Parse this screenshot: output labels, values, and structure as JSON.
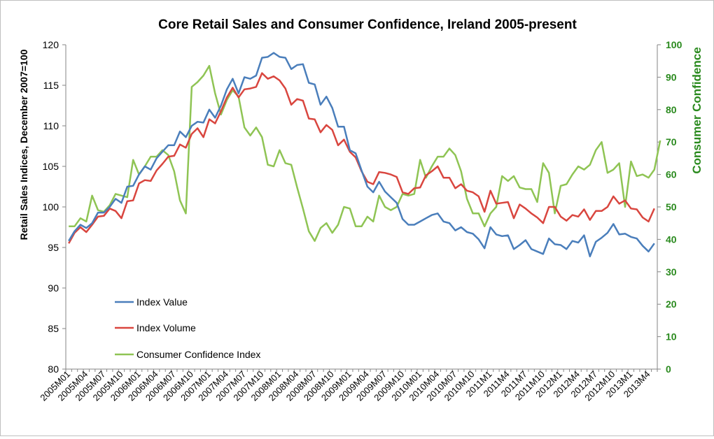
{
  "chart_data": {
    "type": "line",
    "title": "Core Retail Sales and Consumer Confidence, Ireland 2005-present",
    "ylabel_left": "Retail Sales  Indices, December 2007=100",
    "ylabel_right": "Consumer Confidence",
    "ylim_left": [
      80,
      120
    ],
    "ylim_right": [
      0,
      100
    ],
    "y_ticks_left": [
      80,
      85,
      90,
      95,
      100,
      105,
      110,
      115,
      120
    ],
    "y_ticks_right": [
      0,
      10,
      20,
      30,
      40,
      50,
      60,
      70,
      80,
      90,
      100
    ],
    "x_tick_labels": [
      "2005M01",
      "2005M04",
      "2005M07",
      "2005M10",
      "2006M01",
      "2006M04",
      "2006M07",
      "2006M10",
      "2007M01",
      "2007M04",
      "2007M07",
      "2007M10",
      "2008M01",
      "2008M04",
      "2008M07",
      "2008M10",
      "2009M01",
      "2009M04",
      "2009M07",
      "2009M10",
      "2010M01",
      "2010M04",
      "2010M07",
      "2010M10",
      "2011M1",
      "2011M4",
      "2011M7",
      "2011M10",
      "2012M1",
      "2012M4",
      "2012M7",
      "2012M10",
      "2013M1",
      "2013M4"
    ],
    "grid": false,
    "legend_position": "bottom-left",
    "colors": {
      "value": "#4a7ebb",
      "volume": "#d9463f",
      "confidence": "#8fc454",
      "right_axis": "#2a8a1e"
    },
    "series": [
      {
        "name": "Index Value",
        "axis": "left",
        "values": [
          95.8,
          97.0,
          97.8,
          97.4,
          98.0,
          99.3,
          99.3,
          100.0,
          101.0,
          100.5,
          102.5,
          102.6,
          104.0,
          105.0,
          104.6,
          106.0,
          106.8,
          107.6,
          107.6,
          109.3,
          108.6,
          110.0,
          110.5,
          110.4,
          112.0,
          111.0,
          112.5,
          114.5,
          115.8,
          114.0,
          116.0,
          115.8,
          116.2,
          118.4,
          118.5,
          119.0,
          118.5,
          118.4,
          117.0,
          117.5,
          117.6,
          115.3,
          115.1,
          112.6,
          113.6,
          112.2,
          109.9,
          109.9,
          107.0,
          106.6,
          104.5,
          102.5,
          101.8,
          103.1,
          101.9,
          101.2,
          100.5,
          98.5,
          97.8,
          97.8,
          98.2,
          98.6,
          99.0,
          99.2,
          98.2,
          98.0,
          97.1,
          97.5,
          96.9,
          96.7,
          96.0,
          94.9,
          97.5,
          96.6,
          96.4,
          96.5,
          94.8,
          95.3,
          95.9,
          94.8,
          94.5,
          94.2,
          96.1,
          95.4,
          95.3,
          94.8,
          95.8,
          95.6,
          96.5,
          93.9,
          95.7,
          96.2,
          96.8,
          97.9,
          96.6,
          96.7,
          96.3,
          96.1,
          95.2,
          94.5,
          95.5
        ]
      },
      {
        "name": "Index Volume",
        "axis": "left",
        "values": [
          95.5,
          96.8,
          97.5,
          96.9,
          97.8,
          98.8,
          98.9,
          99.8,
          99.5,
          98.6,
          100.7,
          100.8,
          102.9,
          103.3,
          103.2,
          104.5,
          105.3,
          106.2,
          106.3,
          107.7,
          107.3,
          109.0,
          109.7,
          108.6,
          110.8,
          110.3,
          111.8,
          113.5,
          114.7,
          113.5,
          114.5,
          114.6,
          114.8,
          116.5,
          115.8,
          116.1,
          115.6,
          114.6,
          112.6,
          113.3,
          113.1,
          110.9,
          110.8,
          109.2,
          110.1,
          109.5,
          107.6,
          108.3,
          106.8,
          106.1,
          104.4,
          103.1,
          102.8,
          104.3,
          104.2,
          104.0,
          103.7,
          101.8,
          101.6,
          102.3,
          102.4,
          103.9,
          104.4,
          105.0,
          103.6,
          103.6,
          102.3,
          102.8,
          102.0,
          101.8,
          101.3,
          99.4,
          102.0,
          100.4,
          100.5,
          100.6,
          98.6,
          100.3,
          99.8,
          99.2,
          98.7,
          98.0,
          100.0,
          100.0,
          98.8,
          98.3,
          99.0,
          98.8,
          99.7,
          98.4,
          99.5,
          99.5,
          100.0,
          101.3,
          100.4,
          100.8,
          99.8,
          99.7,
          98.7,
          98.2,
          99.8
        ]
      },
      {
        "name": "Consumer Confidence Index",
        "axis": "right",
        "values": [
          44.0,
          44.0,
          46.5,
          45.5,
          53.5,
          49.0,
          48.5,
          50.5,
          54.0,
          53.5,
          53.0,
          64.5,
          60.0,
          62.5,
          65.5,
          65.5,
          67.5,
          66.0,
          61.0,
          52.0,
          48.0,
          87.0,
          88.5,
          90.5,
          93.5,
          85.0,
          78.5,
          83.0,
          86.0,
          84.0,
          74.5,
          72.0,
          74.5,
          71.5,
          63.0,
          62.5,
          67.5,
          63.5,
          63.0,
          56.0,
          49.5,
          42.5,
          39.5,
          43.5,
          45.0,
          42.0,
          44.5,
          50.0,
          49.5,
          44.0,
          44.0,
          47.0,
          45.5,
          53.5,
          50.0,
          49.0,
          50.0,
          54.0,
          53.5,
          54.0,
          64.5,
          59.0,
          62.5,
          65.5,
          65.5,
          68.0,
          66.0,
          61.0,
          52.5,
          48.0,
          48.0,
          44.0,
          48.0,
          50.0,
          59.5,
          58.0,
          59.5,
          56.0,
          55.5,
          55.5,
          51.5,
          63.5,
          60.5,
          48.0,
          56.5,
          57.0,
          60.0,
          62.5,
          61.5,
          63.0,
          67.5,
          70.0,
          60.5,
          61.5,
          63.5,
          50.0,
          64.0,
          59.5,
          60.0,
          59.0,
          61.5,
          70.5
        ]
      }
    ]
  }
}
